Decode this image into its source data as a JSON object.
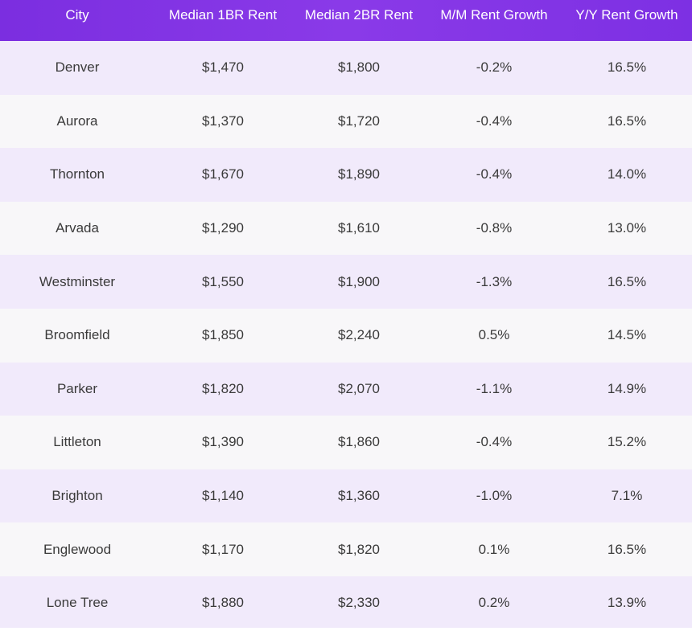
{
  "table": {
    "headers": [
      "City",
      "Median 1BR Rent",
      "Median 2BR Rent",
      "M/M Rent Growth",
      "Y/Y Rent Growth"
    ],
    "rows": [
      [
        "Denver",
        "$1,470",
        "$1,800",
        "-0.2%",
        "16.5%"
      ],
      [
        "Aurora",
        "$1,370",
        "$1,720",
        "-0.4%",
        "16.5%"
      ],
      [
        "Thornton",
        "$1,670",
        "$1,890",
        "-0.4%",
        "14.0%"
      ],
      [
        "Arvada",
        "$1,290",
        "$1,610",
        "-0.8%",
        "13.0%"
      ],
      [
        "Westminster",
        "$1,550",
        "$1,900",
        "-1.3%",
        "16.5%"
      ],
      [
        "Broomfield",
        "$1,850",
        "$2,240",
        "0.5%",
        "14.5%"
      ],
      [
        "Parker",
        "$1,820",
        "$2,070",
        "-1.1%",
        "14.9%"
      ],
      [
        "Littleton",
        "$1,390",
        "$1,860",
        "-0.4%",
        "15.2%"
      ],
      [
        "Brighton",
        "$1,140",
        "$1,360",
        "-1.0%",
        "7.1%"
      ],
      [
        "Englewood",
        "$1,170",
        "$1,820",
        "0.1%",
        "16.5%"
      ],
      [
        "Lone Tree",
        "$1,880",
        "$2,330",
        "0.2%",
        "13.9%"
      ]
    ]
  },
  "colors": {
    "header_bg": "#8034e5",
    "header_text": "#ffffff",
    "row_odd_bg": "#f1eafb",
    "row_even_bg": "#f8f7f9",
    "cell_text": "#3a3a3a"
  }
}
